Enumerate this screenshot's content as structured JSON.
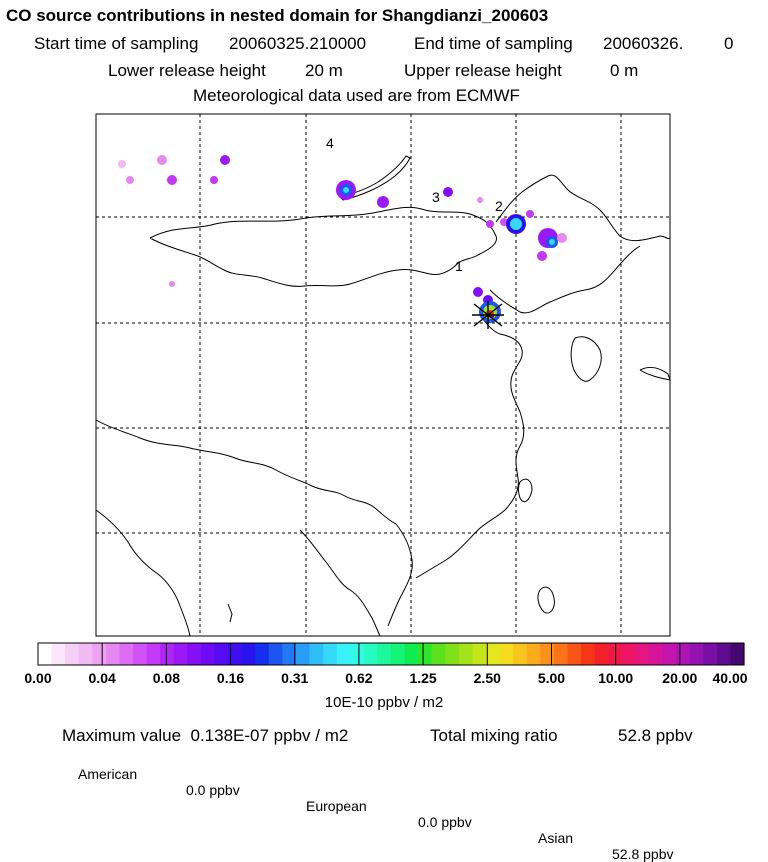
{
  "header": {
    "title": "CO  source contributions in nested domain for Shangdianzi_200603",
    "start_label": "Start time of sampling",
    "start_value": "20060325.210000",
    "end_label": "End time of sampling",
    "end_value": "20060326.",
    "end_value2": "0",
    "lower_label": "Lower release height",
    "lower_value": "20 m",
    "upper_label": "Upper release height",
    "upper_value": "0 m",
    "met_line": "Meteorological data used are from ECMWF"
  },
  "map": {
    "markers": [
      "1",
      "2",
      "3",
      "4"
    ],
    "receptor": "Shangdianzi"
  },
  "colorbar": {
    "ticks": [
      "0.00",
      "0.04",
      "0.08",
      "0.16",
      "0.31",
      "0.62",
      "1.25",
      "2.50",
      "5.00",
      "10.00",
      "20.00",
      "40.00"
    ],
    "units": "10E-10 ppbv / m2",
    "colors": [
      "#ffffff",
      "#fbe6fb",
      "#f6d0f6",
      "#f1baf2",
      "#eda4f0",
      "#e589f1",
      "#dd6ef3",
      "#d153f5",
      "#c23af7",
      "#b026f7",
      "#9b19f6",
      "#8510f5",
      "#6d0cf4",
      "#560bf2",
      "#3f0ef0",
      "#2a14ee",
      "#1530ec",
      "#1c55f0",
      "#2379f3",
      "#299cf5",
      "#2fbdf8",
      "#34d9fa",
      "#39f0fb",
      "#32fbe5",
      "#27fbc2",
      "#1ef89c",
      "#14f476",
      "#10ec4f",
      "#2ee42a",
      "#5ae01c",
      "#80e019",
      "#a4e21a",
      "#c5e51c",
      "#e2e71e",
      "#f4dc1f",
      "#f8c41e",
      "#fbab1c",
      "#fc901a",
      "#fc7318",
      "#fa5417",
      "#f63616",
      "#f2202a",
      "#ef1848",
      "#ed1566",
      "#e51582",
      "#d6159a",
      "#c315ab",
      "#ad14b4",
      "#9412b2",
      "#7a0fa6",
      "#5f0b90",
      "#45086f"
    ]
  },
  "summary": {
    "max_label": "Maximum value",
    "max_value": "0.138E-07 ppbv / m2",
    "total_label": "Total mixing ratio",
    "total_value": "52.8 ppbv",
    "american_label": "American",
    "american_value": "0.0 ppbv",
    "european_label": "European",
    "european_value": "0.0 ppbv",
    "asian_label": "Asian",
    "asian_value": "52.8 ppbv"
  },
  "chart_data": {
    "type": "heatmap",
    "title": "CO  source contributions in nested domain for Shangdianzi_200603",
    "colorbar_ticks": [
      0.0,
      0.04,
      0.08,
      0.16,
      0.31,
      0.62,
      1.25,
      2.5,
      5.0,
      10.0,
      20.0,
      40.0
    ],
    "units": "10E-10 ppbv / m2",
    "maximum_value": "0.138E-07 ppbv / m2",
    "total_mixing_ratio": "52.8 ppbv",
    "contributions": {
      "American": "0.0 ppbv",
      "European": "0.0 ppbv",
      "Asian": "52.8 ppbv"
    },
    "grid": true
  }
}
